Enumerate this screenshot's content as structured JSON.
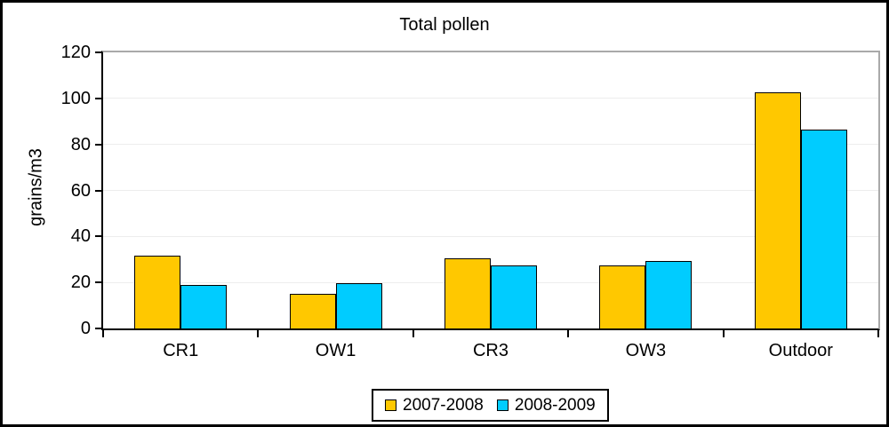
{
  "figure": {
    "title": "Total pollen",
    "y_axis_title": "grains/m3"
  },
  "chart_data": {
    "type": "bar",
    "title": "Total pollen",
    "xlabel": "",
    "ylabel": "grains/m3",
    "categories": [
      "CR1",
      "OW1",
      "CR3",
      "OW3",
      "Outdoor"
    ],
    "series": [
      {
        "name": "2007-2008",
        "color": "#FFC800",
        "values": [
          31.5,
          15,
          30.5,
          27.5,
          102.5
        ]
      },
      {
        "name": "2008-2009",
        "color": "#00CCFF",
        "values": [
          19,
          19.5,
          27.5,
          29.5,
          86.5
        ]
      }
    ],
    "ylim": [
      0,
      120
    ],
    "ytick_step": 20,
    "grid": true,
    "legend_position": "bottom",
    "plot_border_color": "#a9a9a9",
    "gridline_color": "#ededed"
  }
}
